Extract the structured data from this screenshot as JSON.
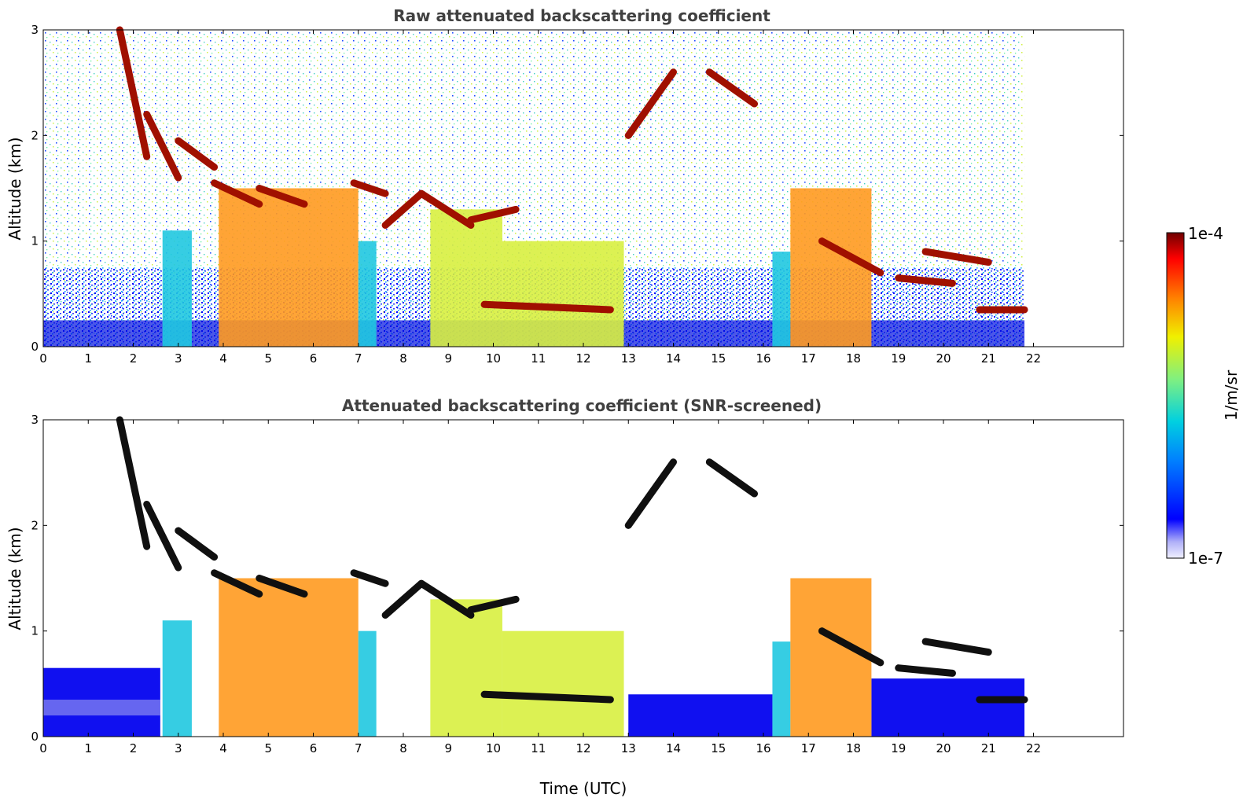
{
  "chart_data": [
    {
      "type": "heatmap",
      "title": "Raw attenuated backscattering coefficient",
      "xlabel": "",
      "ylabel": "Altitude (km)",
      "xlim": [
        0,
        24
      ],
      "ylim": [
        0,
        3
      ],
      "x_ticks": [
        "0",
        "1",
        "2",
        "3",
        "4",
        "5",
        "6",
        "7",
        "8",
        "9",
        "10",
        "11",
        "12",
        "13",
        "14",
        "15",
        "16",
        "17",
        "18",
        "19",
        "20",
        "21",
        "22"
      ],
      "y_ticks": [
        "0",
        "1",
        "2",
        "3"
      ],
      "data_end_time": 21.8,
      "layers": [
        {
          "start": 1.7,
          "end": 2.3,
          "alt_start": 3.0,
          "alt_end": 1.8
        },
        {
          "start": 2.3,
          "end": 3.0,
          "alt_start": 2.2,
          "alt_end": 1.6
        },
        {
          "start": 3.0,
          "end": 3.8,
          "alt_start": 1.95,
          "alt_end": 1.7
        },
        {
          "start": 3.8,
          "end": 4.8,
          "alt_start": 1.55,
          "alt_end": 1.35
        },
        {
          "start": 4.8,
          "end": 5.8,
          "alt_start": 1.5,
          "alt_end": 1.35
        },
        {
          "start": 6.9,
          "end": 7.6,
          "alt_start": 1.55,
          "alt_end": 1.45
        },
        {
          "start": 7.6,
          "end": 8.4,
          "alt_start": 1.15,
          "alt_end": 1.45
        },
        {
          "start": 8.4,
          "end": 9.5,
          "alt_start": 1.45,
          "alt_end": 1.15
        },
        {
          "start": 9.5,
          "end": 10.5,
          "alt_start": 1.2,
          "alt_end": 1.3
        },
        {
          "start": 13.0,
          "end": 14.0,
          "alt_start": 2.0,
          "alt_end": 2.6
        },
        {
          "start": 14.8,
          "end": 15.8,
          "alt_start": 2.6,
          "alt_end": 2.3
        },
        {
          "start": 17.3,
          "end": 18.6,
          "alt_start": 1.0,
          "alt_end": 0.7
        },
        {
          "start": 9.8,
          "end": 12.6,
          "alt_start": 0.4,
          "alt_end": 0.35
        },
        {
          "start": 19.6,
          "end": 21.0,
          "alt_start": 0.9,
          "alt_end": 0.8
        },
        {
          "start": 19.0,
          "end": 20.2,
          "alt_start": 0.65,
          "alt_end": 0.6
        },
        {
          "start": 20.8,
          "end": 21.8,
          "alt_start": 0.35,
          "alt_end": 0.35
        }
      ],
      "columns": [
        {
          "start": 2.65,
          "end": 3.3,
          "top": 1.1,
          "kind": "cyan"
        },
        {
          "start": 3.9,
          "end": 7.0,
          "top": 1.5,
          "kind": "orange"
        },
        {
          "start": 7.0,
          "end": 7.4,
          "top": 1.0,
          "kind": "cyan"
        },
        {
          "start": 8.6,
          "end": 10.2,
          "top": 1.3,
          "kind": "yellow"
        },
        {
          "start": 10.2,
          "end": 12.9,
          "top": 1.0,
          "kind": "yellow"
        },
        {
          "start": 16.2,
          "end": 16.6,
          "top": 0.9,
          "kind": "cyan"
        },
        {
          "start": 16.6,
          "end": 18.4,
          "top": 1.5,
          "kind": "orange"
        }
      ]
    },
    {
      "type": "heatmap",
      "title": "Attenuated backscattering coefficient (SNR-screened)",
      "xlabel": "Time (UTC)",
      "ylabel": "Altitude (km)",
      "xlim": [
        0,
        24
      ],
      "ylim": [
        0,
        3
      ],
      "x_ticks": [
        "0",
        "1",
        "2",
        "3",
        "4",
        "5",
        "6",
        "7",
        "8",
        "9",
        "10",
        "11",
        "12",
        "13",
        "14",
        "15",
        "16",
        "17",
        "18",
        "19",
        "20",
        "21",
        "22"
      ],
      "y_ticks": [
        "0",
        "1",
        "2",
        "3"
      ],
      "data_end_time": 21.8
    }
  ],
  "colorbar": {
    "label": "1/m/sr",
    "max_label": "1e-4",
    "min_label": "1e-7",
    "colors": [
      "#f0f0ff",
      "#c8c8f0",
      "#8080ff",
      "#0000ff",
      "#0060ff",
      "#00c0ff",
      "#20e0c0",
      "#80f080",
      "#e0f040",
      "#ffd000",
      "#ff8000",
      "#ff2000",
      "#b00000",
      "#700000"
    ]
  }
}
